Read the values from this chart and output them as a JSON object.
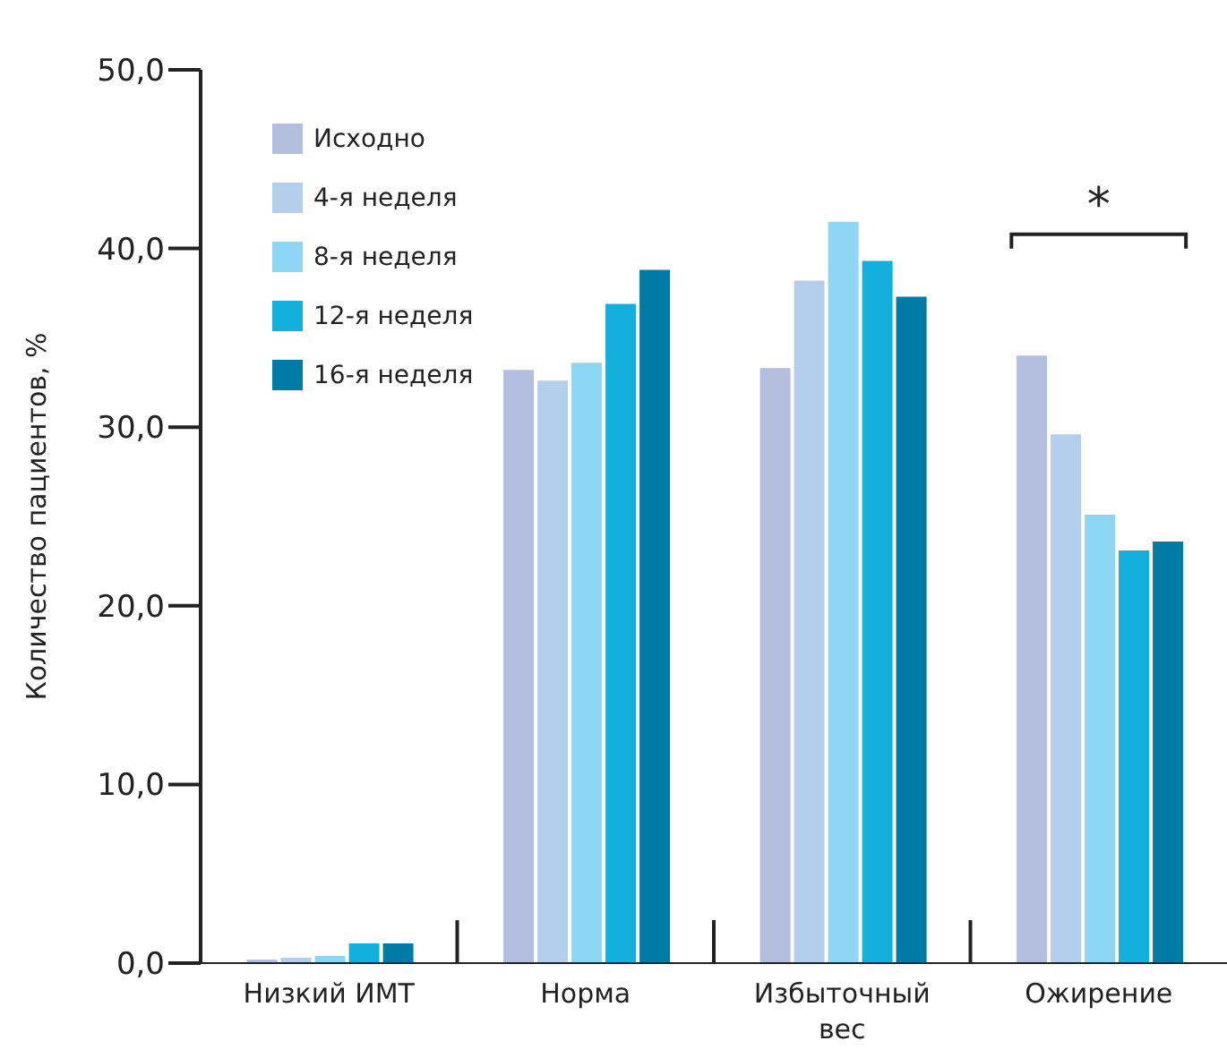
{
  "chart_data": {
    "type": "bar",
    "ylabel": "Количество пациентов, %",
    "categories": [
      "Низкий ИМТ",
      "Норма",
      "Избыточный вес",
      "Ожирение"
    ],
    "series": [
      {
        "name": "Исходно",
        "color": "#b4bedf",
        "values": [
          0.2,
          33.2,
          33.3,
          34.0
        ]
      },
      {
        "name": "4-я неделя",
        "color": "#b3cfec",
        "values": [
          0.3,
          32.6,
          38.2,
          29.6
        ]
      },
      {
        "name": "8-я неделя",
        "color": "#8dd7f5",
        "values": [
          0.4,
          33.6,
          41.5,
          25.1
        ]
      },
      {
        "name": "12-я неделя",
        "color": "#13afdd",
        "values": [
          1.1,
          36.9,
          39.3,
          23.1
        ]
      },
      {
        "name": "16-я неделя",
        "color": "#007ba6",
        "values": [
          1.1,
          38.8,
          37.3,
          23.6
        ]
      }
    ],
    "ylim": [
      0,
      50
    ],
    "yticks": [
      {
        "value": 0,
        "label": "0,0"
      },
      {
        "value": 10,
        "label": "10,0"
      },
      {
        "value": 20,
        "label": "20,0"
      },
      {
        "value": 30,
        "label": "30,0"
      },
      {
        "value": 40,
        "label": "40,0"
      },
      {
        "value": 50,
        "label": "50,0"
      }
    ],
    "annotations": [
      "*"
    ],
    "grid": false,
    "legend": "top left"
  }
}
